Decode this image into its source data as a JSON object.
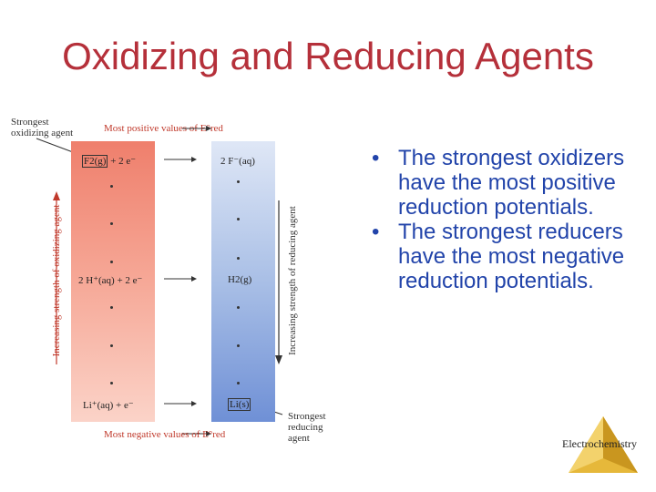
{
  "title": "Oxidizing and Reducing Agents",
  "figure": {
    "strongest_oxidizing_line1": "Strongest",
    "strongest_oxidizing_line2": "oxidizing agent",
    "top_label": "Most positive values of E°red",
    "bottom_label": "Most negative values of E°red",
    "left_axis": "Increasing strength of oxidizing agent",
    "right_axis": "Increasing strength of reducing agent",
    "strongest_reducing_line1": "Strongest",
    "strongest_reducing_line2": "reducing",
    "strongest_reducing_line3": "agent",
    "rows": [
      {
        "oxidized": "F2(g)",
        "electrons": "+ 2 e⁻",
        "reduced": "2 F⁻(aq)"
      },
      {
        "oxidized": "2 H⁺(aq) + 2 e⁻",
        "electrons": "",
        "reduced": "H2(g)"
      },
      {
        "oxidized": "Li⁺(aq) + e⁻",
        "electrons": "",
        "reduced": "Li(s)"
      }
    ]
  },
  "bullets": [
    "The strongest oxidizers have the most positive reduction potentials.",
    "The strongest reducers have the most negative reduction potentials."
  ],
  "logo_text": "Electrochemistry",
  "colors": {
    "title": "#b5303a",
    "bullets": "#2244aa",
    "ox_gradient_top": "#ef7f6c",
    "red_gradient_bottom": "#6f90d6"
  }
}
